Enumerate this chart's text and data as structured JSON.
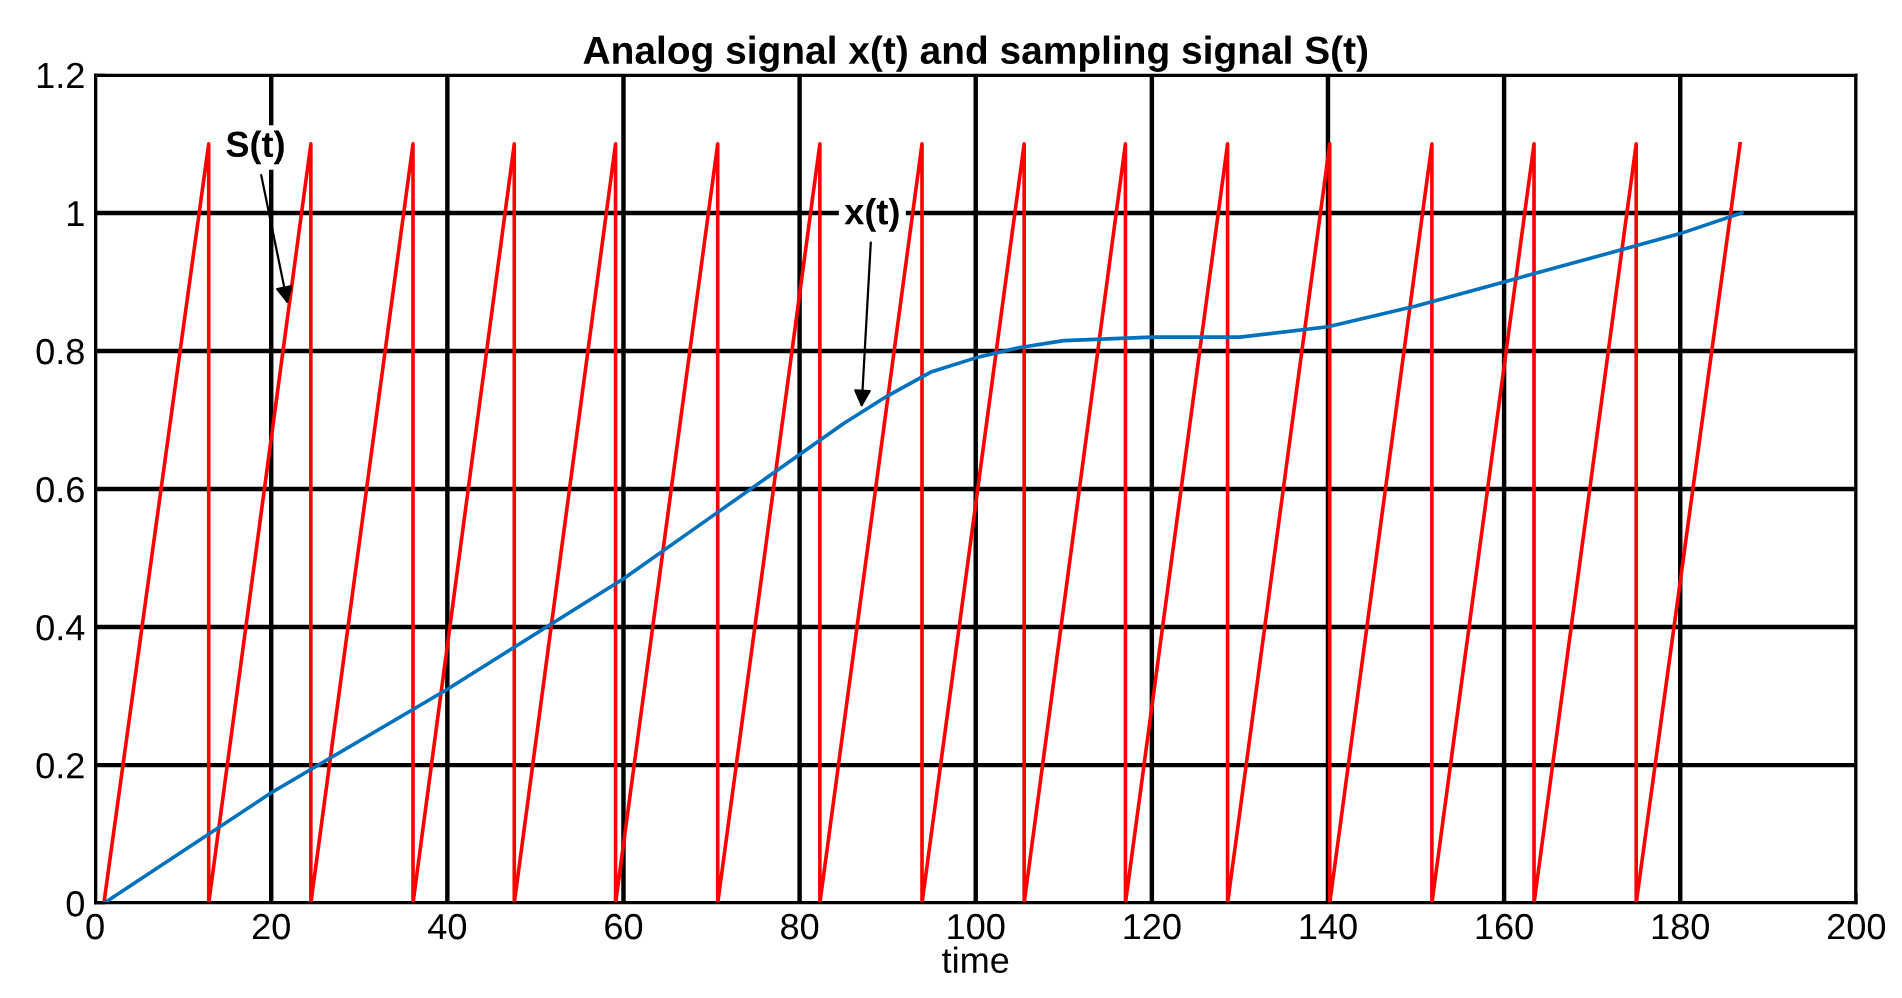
{
  "chart_data": {
    "type": "line",
    "title": "Analog signal x(t) and sampling signal S(t)",
    "xlabel": "time",
    "xlim": [
      0,
      200
    ],
    "ylim": [
      0,
      1.2
    ],
    "xticks": [
      0,
      20,
      40,
      60,
      80,
      100,
      120,
      140,
      160,
      180,
      200
    ],
    "yticks": [
      0,
      0.2,
      0.4,
      0.6,
      0.8,
      1,
      1.2
    ],
    "grid": true,
    "legend": false,
    "marker": "none",
    "line_style": "solid",
    "series": [
      {
        "color": "#ff0000",
        "x": [
          1,
          12.9,
          12.9,
          24.5,
          24.5,
          36.1,
          36.1,
          47.6,
          47.6,
          59.1,
          59.1,
          70.7,
          70.7,
          82.3,
          82.3,
          93.9,
          93.9,
          105.5,
          105.5,
          117.0,
          117.0,
          128.6,
          128.6,
          140.2,
          140.2,
          151.8,
          151.8,
          163.4,
          163.4,
          175.0,
          175.0,
          186.8
        ],
        "values": [
          0,
          1.1,
          0,
          1.1,
          0,
          1.1,
          0,
          1.1,
          0,
          1.1,
          0,
          1.1,
          0,
          1.1,
          0,
          1.1,
          0,
          1.1,
          0,
          1.1,
          0,
          1.1,
          0,
          1.1,
          0,
          1.1,
          0,
          1.1,
          0,
          1.1,
          0,
          1.1
        ]
      },
      {
        "color": "#0072bd",
        "x": [
          1,
          20,
          40,
          60,
          70,
          80,
          85,
          90,
          95,
          100,
          105,
          110,
          120,
          130,
          140,
          150,
          160,
          170,
          180,
          187
        ],
        "values": [
          0,
          0.16,
          0.31,
          0.47,
          0.56,
          0.65,
          0.695,
          0.735,
          0.77,
          0.79,
          0.805,
          0.815,
          0.82,
          0.82,
          0.835,
          0.865,
          0.9,
          0.935,
          0.97,
          1.0
        ]
      }
    ],
    "annotations": [
      {
        "text": "S(t)",
        "x": 22,
        "y": 0.86
      },
      {
        "text": "x(t)",
        "x": 87,
        "y": 0.71
      }
    ]
  }
}
